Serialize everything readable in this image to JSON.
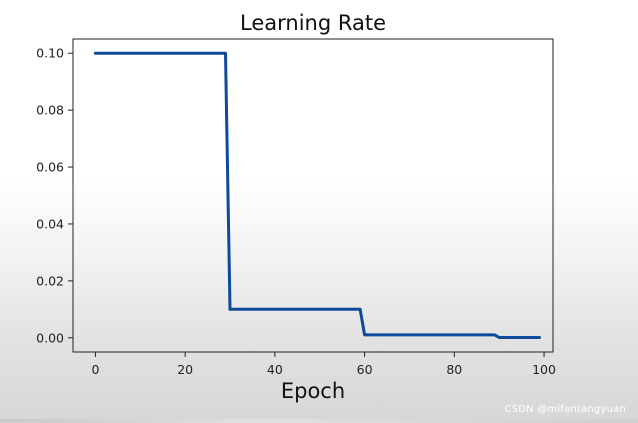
{
  "chart_data": {
    "type": "line",
    "title": "Learning Rate",
    "xlabel": "Epoch",
    "ylabel": "",
    "xlim": [
      -5,
      102
    ],
    "ylim": [
      -0.005,
      0.105
    ],
    "xticks": [
      0,
      20,
      40,
      60,
      80,
      100
    ],
    "yticks": [
      0.0,
      0.02,
      0.04,
      0.06,
      0.08,
      0.1
    ],
    "ytick_labels": [
      "0.00",
      "0.02",
      "0.04",
      "0.06",
      "0.08",
      "0.10"
    ],
    "grid": false,
    "series": [
      {
        "color": "#0d4a9a",
        "x": [
          0,
          29,
          30,
          59,
          60,
          89,
          90,
          99
        ],
        "y": [
          0.1,
          0.1,
          0.01,
          0.01,
          0.001,
          0.001,
          0.0001,
          0.0001
        ]
      }
    ]
  },
  "watermark": "CSDN @mifantangyuan"
}
